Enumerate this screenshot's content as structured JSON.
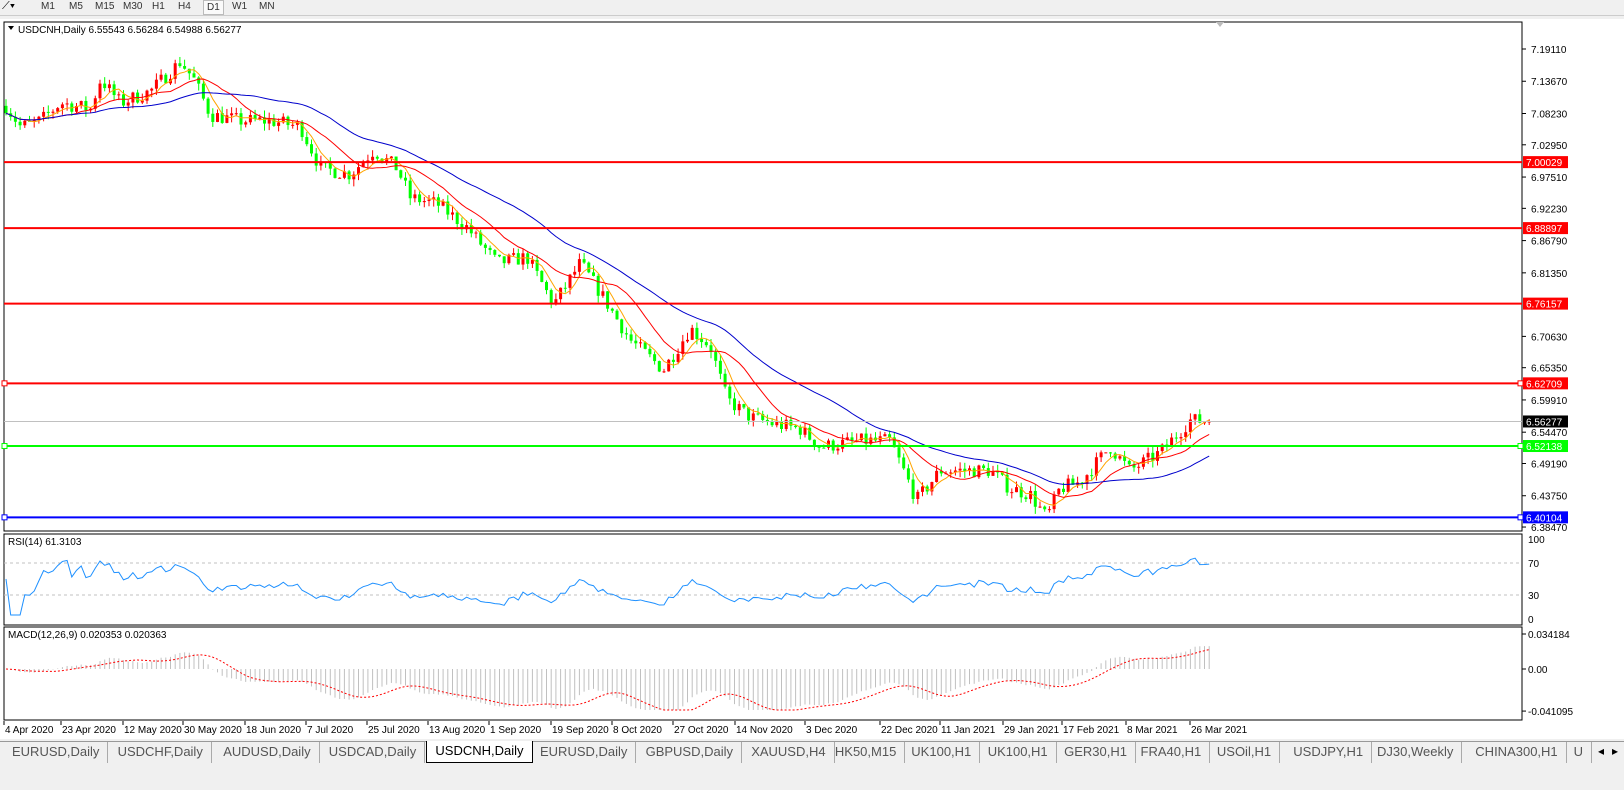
{
  "toolbar": {
    "timeframes": [
      "M1",
      "M5",
      "M15",
      "M30",
      "H1",
      "H4",
      "D1",
      "W1",
      "MN"
    ],
    "selected": "D1"
  },
  "chart": {
    "title": "USDCNH,Daily",
    "ohlc": "6.55543 6.56284 6.54988 6.56277",
    "current_price": 6.56277,
    "current_price_label": "6.56277",
    "price_ticks": [
      "7.19110",
      "7.13670",
      "7.08230",
      "7.02950",
      "6.97510",
      "6.92230",
      "6.86790",
      "6.81350",
      "6.70630",
      "6.65350",
      "6.59910",
      "6.54470",
      "6.49190",
      "6.43750",
      "6.38470"
    ],
    "levels": [
      {
        "price": 7.00029,
        "label": "7.00029",
        "color": "#ff0000"
      },
      {
        "price": 6.88897,
        "label": "6.88897",
        "color": "#ff0000"
      },
      {
        "price": 6.76157,
        "label": "6.76157",
        "color": "#ff0000"
      },
      {
        "price": 6.62709,
        "label": "6.62709",
        "color": "#ff0000",
        "handle": true
      },
      {
        "price": 6.52138,
        "label": "6.52138",
        "color": "#00ff00",
        "handle": true
      },
      {
        "price": 6.40104,
        "label": "6.40104",
        "color": "#0000ff",
        "handle": true
      }
    ],
    "colors": {
      "bull": "#ff0000",
      "bear": "#00ff00",
      "ma_fast": "#ffa500",
      "ma_mid": "#ff0000",
      "ma_slow": "#0000cc",
      "rsi": "#1e90ff",
      "macd_signal": "#ff0000",
      "macd_hist": "#c0c0c0"
    },
    "date_ticks": [
      "4 Apr 2020",
      "23 Apr 2020",
      "12 May 2020",
      "30 May 2020",
      "18 Jun 2020",
      "7 Jul 2020",
      "25 Jul 2020",
      "13 Aug 2020",
      "1 Sep 2020",
      "19 Sep 2020",
      "8 Oct 2020",
      "27 Oct 2020",
      "14 Nov 2020",
      "3 Dec 2020",
      "22 Dec 2020",
      "11 Jan 2021",
      "29 Jan 2021",
      "17 Feb 2021",
      "8 Mar 2021",
      "26 Mar 2021"
    ],
    "price_path": [
      [
        "2020-04-04",
        7.1
      ],
      [
        "2020-04-09",
        7.06
      ],
      [
        "2020-04-15",
        7.07
      ],
      [
        "2020-04-21",
        7.1
      ],
      [
        "2020-04-30",
        7.09
      ],
      [
        "2020-05-03",
        7.14
      ],
      [
        "2020-05-09",
        7.1
      ],
      [
        "2020-05-18",
        7.12
      ],
      [
        "2020-05-27",
        7.17
      ],
      [
        "2020-05-31",
        7.14
      ],
      [
        "2020-06-05",
        7.08
      ],
      [
        "2020-06-14",
        7.07
      ],
      [
        "2020-06-23",
        7.07
      ],
      [
        "2020-07-02",
        7.06
      ],
      [
        "2020-07-08",
        6.99
      ],
      [
        "2020-07-17",
        6.98
      ],
      [
        "2020-07-24",
        7.02
      ],
      [
        "2020-07-31",
        6.99
      ],
      [
        "2020-08-04",
        6.94
      ],
      [
        "2020-08-12",
        6.93
      ],
      [
        "2020-08-21",
        6.89
      ],
      [
        "2020-08-30",
        6.83
      ],
      [
        "2020-09-08",
        6.84
      ],
      [
        "2020-09-16",
        6.76
      ],
      [
        "2020-09-24",
        6.83
      ],
      [
        "2020-09-30",
        6.78
      ],
      [
        "2020-10-09",
        6.7
      ],
      [
        "2020-10-19",
        6.65
      ],
      [
        "2020-10-27",
        6.72
      ],
      [
        "2020-11-02",
        6.69
      ],
      [
        "2020-11-07",
        6.6
      ],
      [
        "2020-11-14",
        6.57
      ],
      [
        "2020-11-20",
        6.56
      ],
      [
        "2020-11-29",
        6.55
      ],
      [
        "2020-12-05",
        6.52
      ],
      [
        "2020-12-17",
        6.53
      ],
      [
        "2020-12-26",
        6.53
      ],
      [
        "2021-01-03",
        6.43
      ],
      [
        "2021-01-10",
        6.48
      ],
      [
        "2021-01-16",
        6.48
      ],
      [
        "2021-01-25",
        6.48
      ],
      [
        "2021-01-31",
        6.45
      ],
      [
        "2021-02-06",
        6.44
      ],
      [
        "2021-02-11",
        6.4
      ],
      [
        "2021-02-15",
        6.45
      ],
      [
        "2021-02-21",
        6.46
      ],
      [
        "2021-03-02",
        6.52
      ],
      [
        "2021-03-08",
        6.48
      ],
      [
        "2021-03-17",
        6.51
      ],
      [
        "2021-03-22",
        6.54
      ],
      [
        "2021-03-26",
        6.565
      ],
      [
        "2021-04-02",
        6.5628
      ]
    ]
  },
  "rsi": {
    "label": "RSI(14) 61.3103",
    "ticks": [
      "100",
      "70",
      "30",
      "0"
    ]
  },
  "macd": {
    "label": "MACD(12,26,9) 0.020353 0.020363",
    "ticks": [
      "0.034184",
      "0.00",
      "-0.041095"
    ]
  },
  "tabs": [
    "EURUSD,Daily",
    "USDCHF,Daily",
    "AUDUSD,Daily",
    "USDCAD,Daily",
    "USDCNH,Daily",
    "EURUSD,Daily",
    "GBPUSD,Daily",
    "XAUUSD,H4",
    "HK50,M15",
    "UK100,H1",
    "UK100,H1",
    "GER30,H1",
    "FRA40,H1",
    "USOil,H1",
    "USDJPY,H1",
    "DJ30,Weekly",
    "CHINA300,H1",
    "U"
  ],
  "active_tab": "USDCNH,Daily"
}
